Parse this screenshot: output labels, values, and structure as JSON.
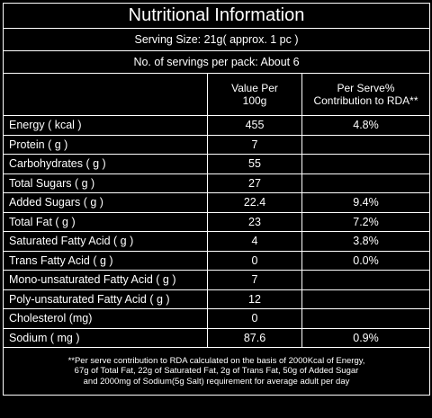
{
  "title": "Nutritional Information",
  "serving_size": "Serving Size: 21g( approx. 1 pc )",
  "servings_per_pack": "No. of servings per pack: About 6",
  "table": {
    "header": [
      "Value Per\n100g",
      "Per Serve%\nContribution to RDA**"
    ],
    "rows": [
      {
        "name": "Energy ( kcal )",
        "value": "455",
        "rda": "4.8%"
      },
      {
        "name": "Protein ( g )",
        "value": "7"
      },
      {
        "name": "Carbohydrates ( g )",
        "value": "55"
      },
      {
        "name": "Total Sugars ( g )",
        "value": "27"
      },
      {
        "name": "Added Sugars ( g )",
        "value": "22.4",
        "rda": "9.4%"
      },
      {
        "name": "Total Fat ( g )",
        "value": "23",
        "rda": "7.2%"
      },
      {
        "name": "Saturated Fatty Acid ( g )",
        "value": "4",
        "rda": "3.8%"
      },
      {
        "name": "Trans Fatty Acid ( g )",
        "value": "0",
        "rda": "0.0%"
      },
      {
        "name": "Mono-unsaturated Fatty Acid ( g )",
        "value": "7"
      },
      {
        "name": "Poly-unsaturated Fatty Acid ( g )",
        "value": "12"
      },
      {
        "name": "Cholesterol (mg)",
        "value": "0"
      },
      {
        "name": "Sodium ( mg )",
        "value": "87.6",
        "rda": "0.9%"
      }
    ]
  },
  "footnote": "**Per serve contribution to RDA calculated on the basis of 2000Kcal of Energy,\n67g of Total Fat, 22g of Saturated Fat, 2g of Trans Fat, 50g of Added Sugar\nand 2000mg of Sodium(5g Salt) requirement for average adult per day"
}
